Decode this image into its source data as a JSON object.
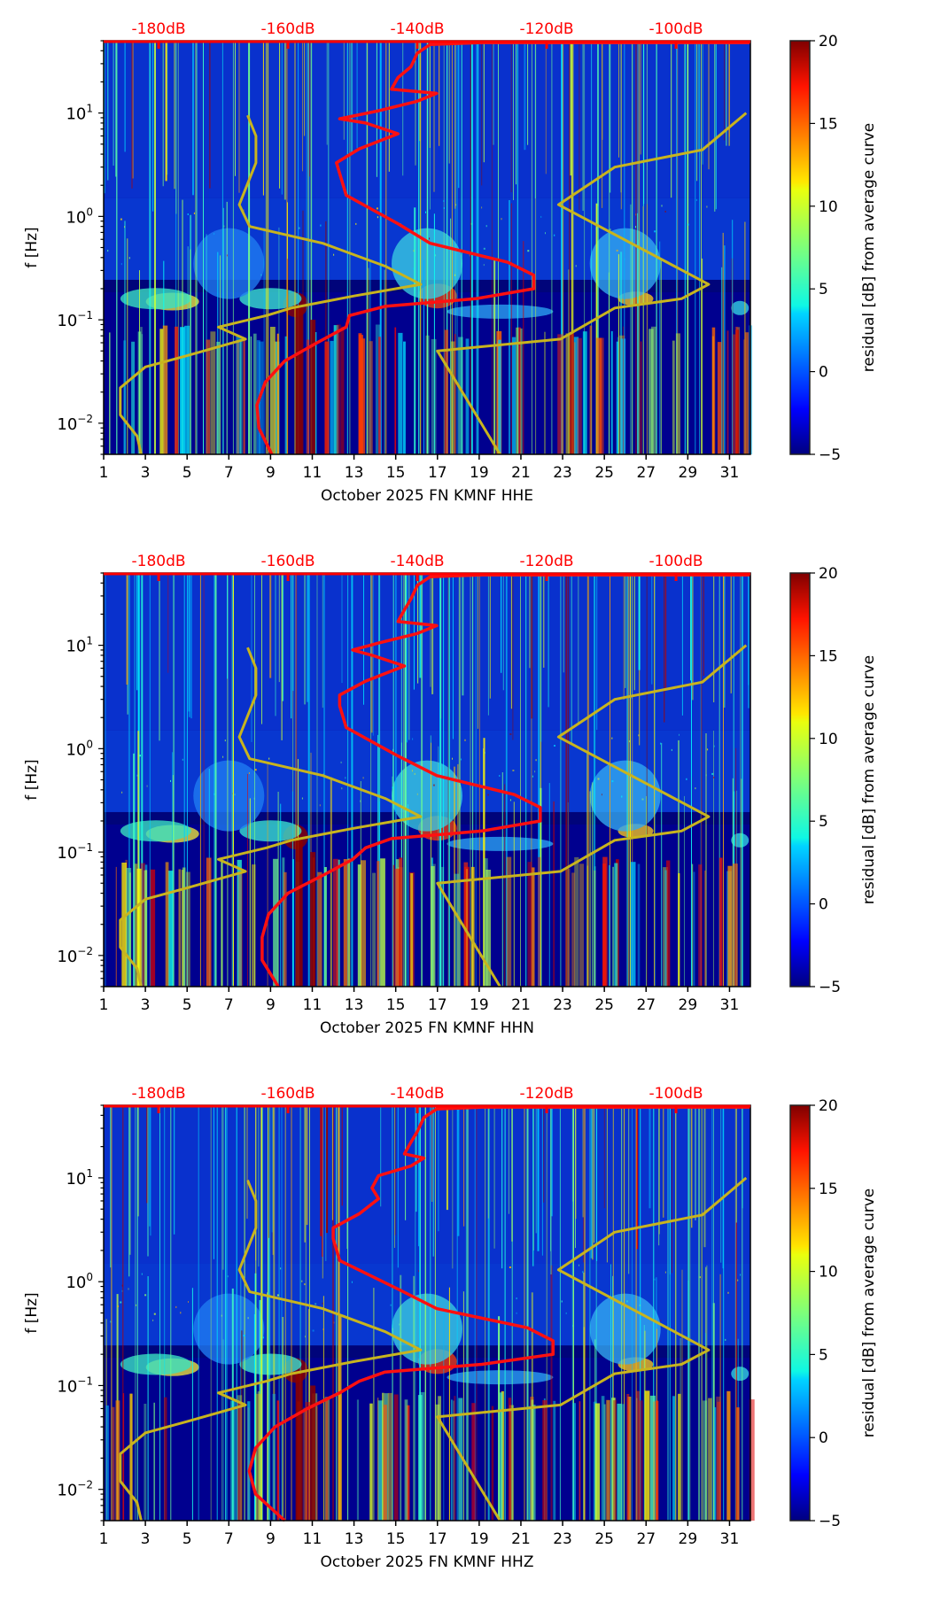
{
  "colors": {
    "db_axis": "#ff0000",
    "average_curve": "#ff1010",
    "model_curve": "#c8b41e",
    "frame": "#000000"
  },
  "colormap": "jet",
  "chart_data": [
    {
      "type": "heatmap",
      "channel": "HHE",
      "xlabel": "October 2025 FN KMNF  HHE",
      "ylabel": "f [Hz]",
      "xlim": [
        1,
        32
      ],
      "ylim": [
        0.005,
        50
      ],
      "yscale": "log",
      "x_ticks": [
        "1",
        "3",
        "5",
        "7",
        "9",
        "11",
        "13",
        "15",
        "17",
        "19",
        "21",
        "23",
        "25",
        "27",
        "29",
        "31"
      ],
      "y_ticks": [
        {
          "label": "10",
          "exp": "1",
          "value": 10
        },
        {
          "label": "10",
          "exp": "0",
          "value": 1
        },
        {
          "label": "10",
          "exp": "−1",
          "value": 0.1
        },
        {
          "label": "10",
          "exp": "−2",
          "value": 0.01
        }
      ],
      "top_axis": {
        "ticks": [
          "-180dB",
          "-160dB",
          "-140dB",
          "-120dB",
          "-100dB"
        ],
        "values": [
          -180,
          -160,
          -140,
          -120,
          -100
        ],
        "xlim": [
          -188.5,
          -88.5
        ]
      },
      "colorbar": {
        "label": "residual [dB] from average curve",
        "ticks": [
          "20",
          "15",
          "10",
          "5",
          "0",
          "−5"
        ],
        "values": [
          20,
          15,
          10,
          5,
          0,
          -5
        ],
        "range": [
          -5,
          20
        ]
      },
      "average_curve_db": [
        [
          -162.5,
          0.005
        ],
        [
          -164.5,
          0.009
        ],
        [
          -164.8,
          0.015
        ],
        [
          -163.5,
          0.025
        ],
        [
          -160.5,
          0.04
        ],
        [
          -155.5,
          0.06
        ],
        [
          -151,
          0.085
        ],
        [
          -150.5,
          0.11
        ],
        [
          -145,
          0.135
        ],
        [
          -131,
          0.16
        ],
        [
          -122,
          0.2
        ],
        [
          -122,
          0.27
        ],
        [
          -126,
          0.36
        ],
        [
          -138,
          0.55
        ],
        [
          -143,
          0.85
        ],
        [
          -151,
          1.6
        ],
        [
          -152,
          2.6
        ],
        [
          -152.5,
          3.3
        ],
        [
          -149,
          4.5
        ],
        [
          -143,
          6.3
        ],
        [
          -148,
          8
        ],
        [
          -152,
          8.8
        ],
        [
          -146,
          10.5
        ],
        [
          -140,
          13
        ],
        [
          -137,
          15.5
        ],
        [
          -144,
          17
        ],
        [
          -143,
          22
        ],
        [
          -141,
          28
        ],
        [
          -140,
          38
        ],
        [
          -138,
          46
        ],
        [
          -130,
          48
        ],
        [
          -88.5,
          48
        ]
      ],
      "model_curves": [
        {
          "name": "low",
          "points": [
            [
              2.8,
              0.005
            ],
            [
              2.6,
              0.0075
            ],
            [
              1.8,
              0.012
            ],
            [
              1.8,
              0.022
            ],
            [
              3,
              0.035
            ],
            [
              5,
              0.045
            ],
            [
              7.8,
              0.065
            ],
            [
              6.5,
              0.085
            ],
            [
              8.8,
              0.11
            ],
            [
              10,
              0.13
            ],
            [
              13,
              0.17
            ],
            [
              16.2,
              0.22
            ],
            [
              14.5,
              0.33
            ],
            [
              11.5,
              0.55
            ],
            [
              8,
              0.8
            ],
            [
              7.5,
              1.3
            ],
            [
              8.3,
              3.3
            ],
            [
              8.3,
              6
            ],
            [
              7.9,
              9.5
            ]
          ]
        },
        {
          "name": "high",
          "points": [
            [
              20,
              0.005
            ],
            [
              17,
              0.05
            ],
            [
              22.9,
              0.065
            ],
            [
              25.5,
              0.13
            ],
            [
              28.7,
              0.16
            ],
            [
              30,
              0.22
            ],
            [
              22.8,
              1.3
            ],
            [
              25.5,
              3
            ],
            [
              29.7,
              4.4
            ],
            [
              31.8,
              10
            ]
          ]
        }
      ]
    },
    {
      "type": "heatmap",
      "channel": "HHN",
      "xlabel": "October 2025 FN KMNF  HHN",
      "ylabel": "f [Hz]",
      "xlim": [
        1,
        32
      ],
      "ylim": [
        0.005,
        50
      ],
      "yscale": "log",
      "x_ticks": [
        "1",
        "3",
        "5",
        "7",
        "9",
        "11",
        "13",
        "15",
        "17",
        "19",
        "21",
        "23",
        "25",
        "27",
        "29",
        "31"
      ],
      "y_ticks": [
        {
          "label": "10",
          "exp": "1",
          "value": 10
        },
        {
          "label": "10",
          "exp": "0",
          "value": 1
        },
        {
          "label": "10",
          "exp": "−1",
          "value": 0.1
        },
        {
          "label": "10",
          "exp": "−2",
          "value": 0.01
        }
      ],
      "top_axis": {
        "ticks": [
          "-180dB",
          "-160dB",
          "-140dB",
          "-120dB",
          "-100dB"
        ],
        "values": [
          -180,
          -160,
          -140,
          -120,
          -100
        ],
        "xlim": [
          -188.5,
          -88.5
        ]
      },
      "colorbar": {
        "label": "residual [dB] from average curve",
        "ticks": [
          "20",
          "15",
          "10",
          "5",
          "0",
          "−5"
        ],
        "values": [
          20,
          15,
          10,
          5,
          0,
          -5
        ],
        "range": [
          -5,
          20
        ]
      },
      "average_curve_db": [
        [
          -161.5,
          0.005
        ],
        [
          -164,
          0.009
        ],
        [
          -164,
          0.015
        ],
        [
          -163,
          0.025
        ],
        [
          -160,
          0.04
        ],
        [
          -154.5,
          0.06
        ],
        [
          -150,
          0.085
        ],
        [
          -148,
          0.11
        ],
        [
          -144,
          0.135
        ],
        [
          -130,
          0.16
        ],
        [
          -121,
          0.2
        ],
        [
          -121,
          0.27
        ],
        [
          -125,
          0.36
        ],
        [
          -137,
          0.55
        ],
        [
          -143,
          0.85
        ],
        [
          -151,
          1.6
        ],
        [
          -152,
          2.6
        ],
        [
          -152,
          3.3
        ],
        [
          -148,
          4.5
        ],
        [
          -142,
          6.3
        ],
        [
          -147,
          8
        ],
        [
          -150,
          9
        ],
        [
          -146,
          10.5
        ],
        [
          -140,
          13
        ],
        [
          -137,
          15.5
        ],
        [
          -143,
          17
        ],
        [
          -142,
          22
        ],
        [
          -141,
          28
        ],
        [
          -140,
          38
        ],
        [
          -138,
          46
        ],
        [
          -130,
          48
        ],
        [
          -88.5,
          48
        ]
      ],
      "model_curves": [
        {
          "name": "low",
          "points": [
            [
              2.8,
              0.005
            ],
            [
              2.6,
              0.0075
            ],
            [
              1.8,
              0.012
            ],
            [
              1.8,
              0.022
            ],
            [
              3,
              0.035
            ],
            [
              5,
              0.045
            ],
            [
              7.8,
              0.065
            ],
            [
              6.5,
              0.085
            ],
            [
              8.8,
              0.11
            ],
            [
              10,
              0.13
            ],
            [
              13,
              0.17
            ],
            [
              16.2,
              0.22
            ],
            [
              14.5,
              0.33
            ],
            [
              11.5,
              0.55
            ],
            [
              8,
              0.8
            ],
            [
              7.5,
              1.3
            ],
            [
              8.3,
              3.3
            ],
            [
              8.3,
              6
            ],
            [
              7.9,
              9.5
            ]
          ]
        },
        {
          "name": "high",
          "points": [
            [
              20,
              0.005
            ],
            [
              17,
              0.05
            ],
            [
              22.9,
              0.065
            ],
            [
              25.5,
              0.13
            ],
            [
              28.7,
              0.16
            ],
            [
              30,
              0.22
            ],
            [
              22.8,
              1.3
            ],
            [
              25.5,
              3
            ],
            [
              29.7,
              4.4
            ],
            [
              31.8,
              10
            ]
          ]
        }
      ]
    },
    {
      "type": "heatmap",
      "channel": "HHZ",
      "xlabel": "October 2025 FN KMNF  HHZ",
      "ylabel": "f [Hz]",
      "xlim": [
        1,
        32
      ],
      "ylim": [
        0.005,
        50
      ],
      "yscale": "log",
      "x_ticks": [
        "1",
        "3",
        "5",
        "7",
        "9",
        "11",
        "13",
        "15",
        "17",
        "19",
        "21",
        "23",
        "25",
        "27",
        "29",
        "31"
      ],
      "y_ticks": [
        {
          "label": "10",
          "exp": "1",
          "value": 10
        },
        {
          "label": "10",
          "exp": "0",
          "value": 1
        },
        {
          "label": "10",
          "exp": "−1",
          "value": 0.1
        },
        {
          "label": "10",
          "exp": "−2",
          "value": 0.01
        }
      ],
      "top_axis": {
        "ticks": [
          "-180dB",
          "-160dB",
          "-140dB",
          "-120dB",
          "-100dB"
        ],
        "values": [
          -180,
          -160,
          -140,
          -120,
          -100
        ],
        "xlim": [
          -188.5,
          -88.5
        ]
      },
      "colorbar": {
        "label": "residual [dB] from average curve",
        "ticks": [
          "20",
          "15",
          "10",
          "5",
          "0",
          "−5"
        ],
        "values": [
          20,
          15,
          10,
          5,
          0,
          -5
        ],
        "range": [
          -5,
          20
        ]
      },
      "average_curve_db": [
        [
          -160.5,
          0.005
        ],
        [
          -165,
          0.009
        ],
        [
          -166,
          0.015
        ],
        [
          -165,
          0.025
        ],
        [
          -162,
          0.04
        ],
        [
          -157,
          0.06
        ],
        [
          -152,
          0.085
        ],
        [
          -149,
          0.11
        ],
        [
          -145,
          0.135
        ],
        [
          -130,
          0.16
        ],
        [
          -119,
          0.2
        ],
        [
          -119,
          0.27
        ],
        [
          -123,
          0.36
        ],
        [
          -137,
          0.55
        ],
        [
          -143,
          0.85
        ],
        [
          -152,
          1.6
        ],
        [
          -153,
          2.6
        ],
        [
          -153,
          3.3
        ],
        [
          -149,
          4.5
        ],
        [
          -146,
          6.3
        ],
        [
          -147,
          8
        ],
        [
          -146,
          10.5
        ],
        [
          -141,
          13
        ],
        [
          -139,
          15.5
        ],
        [
          -142,
          17
        ],
        [
          -141,
          22
        ],
        [
          -140,
          28
        ],
        [
          -139,
          38
        ],
        [
          -137,
          46
        ],
        [
          -130,
          48
        ],
        [
          -88.5,
          48
        ]
      ],
      "model_curves": [
        {
          "name": "low",
          "points": [
            [
              2.8,
              0.005
            ],
            [
              2.6,
              0.0075
            ],
            [
              1.8,
              0.012
            ],
            [
              1.8,
              0.022
            ],
            [
              3,
              0.035
            ],
            [
              5,
              0.045
            ],
            [
              7.8,
              0.065
            ],
            [
              6.5,
              0.085
            ],
            [
              8.8,
              0.11
            ],
            [
              10,
              0.13
            ],
            [
              13,
              0.17
            ],
            [
              16.2,
              0.22
            ],
            [
              14.5,
              0.33
            ],
            [
              11.5,
              0.55
            ],
            [
              8,
              0.8
            ],
            [
              7.5,
              1.3
            ],
            [
              8.3,
              3.3
            ],
            [
              8.3,
              6
            ],
            [
              7.9,
              9.5
            ]
          ]
        },
        {
          "name": "high",
          "points": [
            [
              20,
              0.005
            ],
            [
              17,
              0.05
            ],
            [
              22.9,
              0.065
            ],
            [
              25.5,
              0.13
            ],
            [
              28.7,
              0.16
            ],
            [
              30,
              0.22
            ],
            [
              22.8,
              1.3
            ],
            [
              25.5,
              3
            ],
            [
              29.7,
              4.4
            ],
            [
              31.8,
              10
            ]
          ]
        }
      ]
    }
  ]
}
